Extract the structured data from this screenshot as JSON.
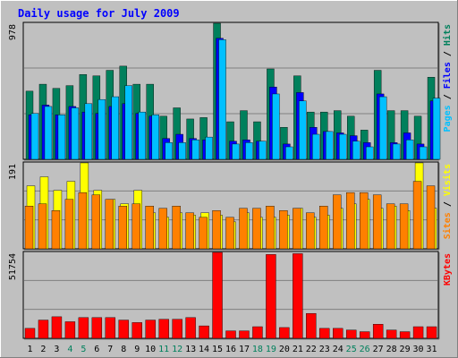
{
  "title": "Daily usage for July 2009",
  "colors": {
    "frame_bg": "#c0c0c0",
    "title": "#0000ff",
    "hits": "#00805c",
    "files": "#0000ff",
    "pages": "#00c0ff",
    "visits": "#ffff00",
    "sites": "#ff8000",
    "kbytes": "#ff0000",
    "weekend_day": "#00805c",
    "weekday_day": "#000000"
  },
  "chart_data": [
    {
      "type": "bar",
      "panel": "hits-files-pages",
      "ylim": [
        0,
        978
      ],
      "tick_max_label": "978",
      "legend": {
        "hits": "Hits",
        "files": "Files",
        "pages": "Pages",
        "sep": " / "
      },
      "categories": [
        "1",
        "2",
        "3",
        "4",
        "5",
        "6",
        "7",
        "8",
        "9",
        "10",
        "11",
        "12",
        "13",
        "14",
        "15",
        "16",
        "17",
        "18",
        "19",
        "20",
        "21",
        "22",
        "23",
        "24",
        "25",
        "26",
        "27",
        "28",
        "29",
        "30",
        "31"
      ],
      "series": [
        {
          "name": "Hits",
          "values": [
            490,
            540,
            510,
            530,
            610,
            600,
            640,
            670,
            540,
            540,
            310,
            370,
            290,
            300,
            978,
            270,
            350,
            270,
            650,
            230,
            600,
            340,
            340,
            350,
            310,
            210,
            640,
            350,
            350,
            310,
            590
          ]
        },
        {
          "name": "Files",
          "values": [
            320,
            390,
            320,
            380,
            340,
            330,
            380,
            400,
            330,
            310,
            150,
            180,
            150,
            140,
            870,
            130,
            140,
            130,
            520,
            110,
            480,
            230,
            200,
            190,
            170,
            120,
            470,
            120,
            190,
            110,
            420
          ]
        },
        {
          "name": "Pages",
          "values": [
            330,
            380,
            320,
            370,
            400,
            430,
            450,
            530,
            340,
            320,
            120,
            120,
            140,
            160,
            860,
            110,
            120,
            130,
            470,
            90,
            420,
            180,
            200,
            180,
            130,
            90,
            450,
            110,
            140,
            90,
            440
          ]
        }
      ]
    },
    {
      "type": "bar",
      "panel": "visits-sites",
      "ylim": [
        0,
        191
      ],
      "tick_max_label": "191",
      "legend": {
        "visits": "Visits",
        "sites": "Sites",
        "sep": " / "
      },
      "categories": [
        "1",
        "2",
        "3",
        "4",
        "5",
        "6",
        "7",
        "8",
        "9",
        "10",
        "11",
        "12",
        "13",
        "14",
        "15",
        "16",
        "17",
        "18",
        "19",
        "20",
        "21",
        "22",
        "23",
        "24",
        "25",
        "26",
        "27",
        "28",
        "29",
        "30",
        "31"
      ],
      "series": [
        {
          "name": "Visits",
          "values": [
            140,
            160,
            130,
            150,
            191,
            130,
            110,
            100,
            130,
            80,
            70,
            80,
            75,
            80,
            75,
            60,
            80,
            70,
            70,
            75,
            90,
            70,
            75,
            90,
            100,
            110,
            90,
            95,
            85,
            191,
            90
          ]
        },
        {
          "name": "Sites",
          "values": [
            95,
            100,
            85,
            110,
            125,
            120,
            110,
            95,
            100,
            95,
            90,
            95,
            80,
            70,
            85,
            70,
            90,
            90,
            95,
            85,
            90,
            80,
            95,
            120,
            125,
            125,
            120,
            100,
            100,
            150,
            140
          ]
        }
      ]
    },
    {
      "type": "bar",
      "panel": "kbytes",
      "ylim": [
        0,
        51754
      ],
      "tick_max_label": "51754",
      "legend": {
        "kbytes": "KBytes"
      },
      "categories": [
        "1",
        "2",
        "3",
        "4",
        "5",
        "6",
        "7",
        "8",
        "9",
        "10",
        "11",
        "12",
        "13",
        "14",
        "15",
        "16",
        "17",
        "18",
        "19",
        "20",
        "21",
        "22",
        "23",
        "24",
        "25",
        "26",
        "27",
        "28",
        "29",
        "30",
        "31"
      ],
      "series": [
        {
          "name": "KBytes",
          "values": [
            6000,
            11000,
            13000,
            10000,
            12500,
            12500,
            12500,
            11000,
            9500,
            11000,
            11500,
            11500,
            12500,
            7500,
            51754,
            4500,
            4500,
            7000,
            50500,
            6500,
            51000,
            15000,
            6000,
            6000,
            5000,
            4000,
            8500,
            5000,
            4000,
            7000,
            7000
          ]
        }
      ]
    }
  ],
  "days": [
    {
      "label": "1",
      "weekend": false
    },
    {
      "label": "2",
      "weekend": false
    },
    {
      "label": "3",
      "weekend": false
    },
    {
      "label": "4",
      "weekend": true
    },
    {
      "label": "5",
      "weekend": true
    },
    {
      "label": "6",
      "weekend": false
    },
    {
      "label": "7",
      "weekend": false
    },
    {
      "label": "8",
      "weekend": false
    },
    {
      "label": "9",
      "weekend": false
    },
    {
      "label": "10",
      "weekend": false
    },
    {
      "label": "11",
      "weekend": true
    },
    {
      "label": "12",
      "weekend": true
    },
    {
      "label": "13",
      "weekend": false
    },
    {
      "label": "14",
      "weekend": false
    },
    {
      "label": "15",
      "weekend": false
    },
    {
      "label": "16",
      "weekend": false
    },
    {
      "label": "17",
      "weekend": false
    },
    {
      "label": "18",
      "weekend": true
    },
    {
      "label": "19",
      "weekend": true
    },
    {
      "label": "20",
      "weekend": false
    },
    {
      "label": "21",
      "weekend": false
    },
    {
      "label": "22",
      "weekend": false
    },
    {
      "label": "23",
      "weekend": false
    },
    {
      "label": "24",
      "weekend": false
    },
    {
      "label": "25",
      "weekend": true
    },
    {
      "label": "26",
      "weekend": true
    },
    {
      "label": "27",
      "weekend": false
    },
    {
      "label": "28",
      "weekend": false
    },
    {
      "label": "29",
      "weekend": false
    },
    {
      "label": "30",
      "weekend": false
    },
    {
      "label": "31",
      "weekend": false
    }
  ]
}
